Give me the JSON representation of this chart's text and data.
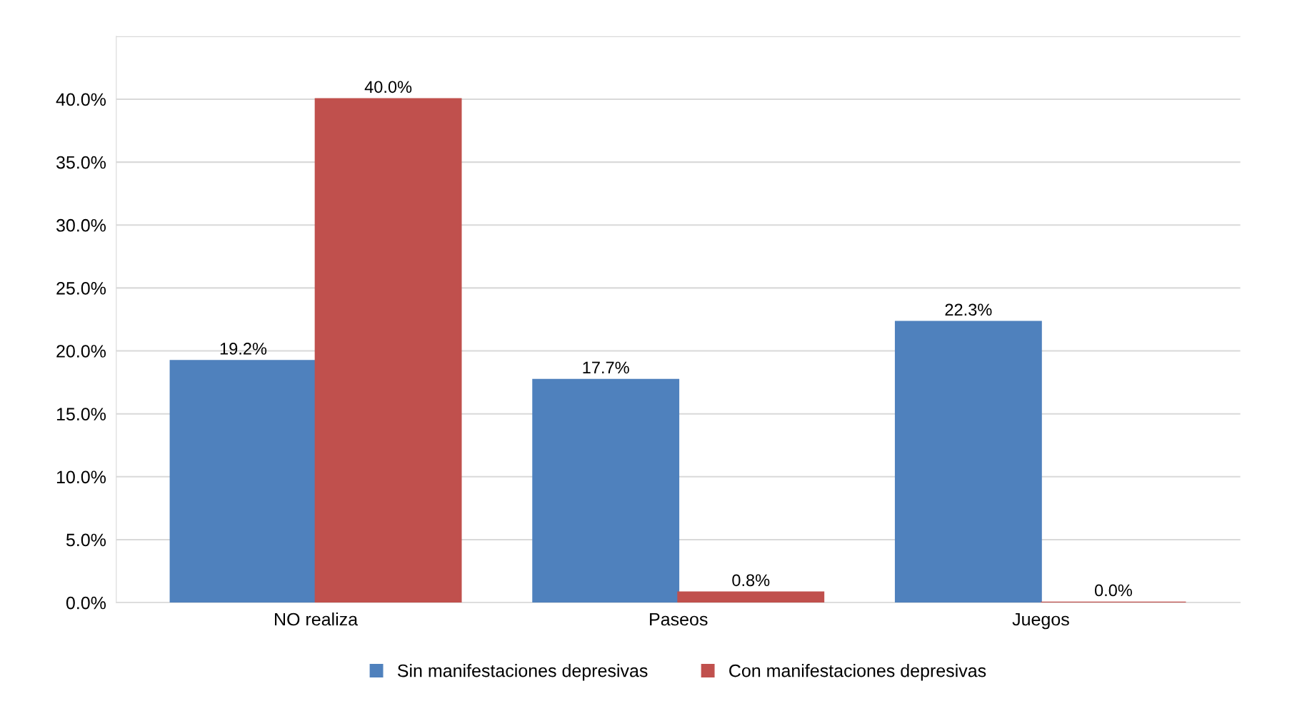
{
  "chart_data": {
    "type": "bar",
    "categories": [
      "NO realiza",
      "Paseos",
      "Juegos"
    ],
    "series": [
      {
        "name": "Sin manifestaciones depresivas",
        "color": "#4f81bd",
        "values": [
          19.2,
          17.7,
          22.3
        ],
        "value_labels": [
          "19.2%",
          "17.7%",
          "22.3%"
        ]
      },
      {
        "name": "Con manifestaciones depresivas",
        "color": "#c0504d",
        "values": [
          40.0,
          0.8,
          0.0
        ],
        "value_labels": [
          "40.0%",
          "0.8%",
          "0.0%"
        ]
      }
    ],
    "ylim": [
      0,
      45
    ],
    "yticks": [
      {
        "value": 0,
        "label": "0.0%"
      },
      {
        "value": 5,
        "label": "5.0%"
      },
      {
        "value": 10,
        "label": "10.0%"
      },
      {
        "value": 15,
        "label": "15.0%"
      },
      {
        "value": 20,
        "label": "20.0%"
      },
      {
        "value": 25,
        "label": "25.0%"
      },
      {
        "value": 30,
        "label": "30.0%"
      },
      {
        "value": 35,
        "label": "35.0%"
      },
      {
        "value": 40,
        "label": "40.0%"
      },
      {
        "value": 45,
        "label": null
      }
    ],
    "grid": "y",
    "legend": "bottom"
  }
}
